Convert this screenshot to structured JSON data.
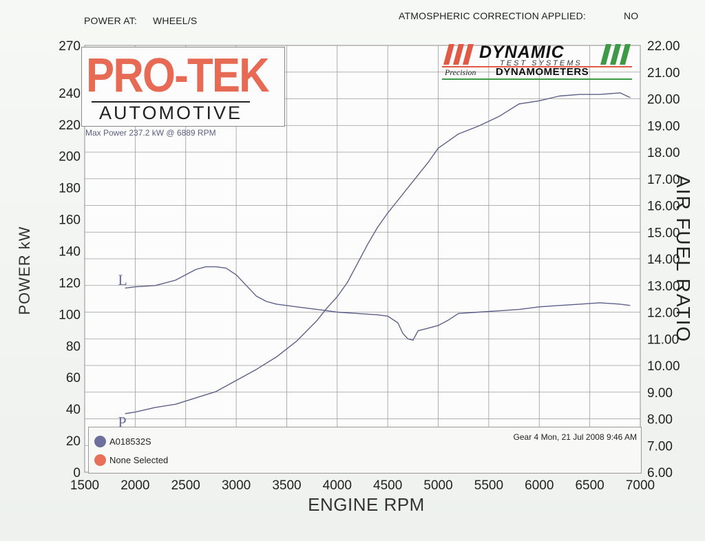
{
  "header": {
    "power_at_label": "POWER AT:",
    "power_at_value": "WHEEL/S",
    "atm_label": "ATMOSPHERIC CORRECTION APPLIED:",
    "atm_value": "NO"
  },
  "logos": {
    "protek_name": "PRO-TEK",
    "protek_sub": "AUTOMOTIVE",
    "dynamic_title": "DYNAMIC",
    "dynamic_sub": "TEST SYSTEMS",
    "dynamic_precision": "Precision",
    "dynamic_dyno": "DYNAMOMETERS"
  },
  "max_power": "Max Power 237.2 kW @ 6889 RPM",
  "legend": {
    "run1": "A018532S",
    "run2": "None Selected",
    "run1_color": "#6f6f9e",
    "run2_color": "#e8705a",
    "gear_info": "Gear 4 Mon, 21 Jul 2008 9:46 AM"
  },
  "chart_data": {
    "type": "line",
    "xlabel": "ENGINE RPM",
    "ylabel": "POWER kW",
    "y2label": "AIR FUEL RATIO",
    "xlim": [
      1500,
      7000
    ],
    "ylim": [
      0,
      270
    ],
    "y2lim": [
      6.0,
      22.0
    ],
    "x_ticks": [
      "1500",
      "2000",
      "2500",
      "3000",
      "3500",
      "4000",
      "4500",
      "5000",
      "5500",
      "6000",
      "6500",
      "7000"
    ],
    "y_ticks": [
      "0",
      "20",
      "40",
      "60",
      "80",
      "100",
      "120",
      "140",
      "160",
      "180",
      "200",
      "220",
      "240",
      "270"
    ],
    "y_tick_values": [
      0,
      20,
      40,
      60,
      80,
      100,
      120,
      140,
      160,
      180,
      200,
      220,
      240,
      270
    ],
    "y2_ticks": [
      "6.00",
      "7.00",
      "8.00",
      "9.00",
      "10.00",
      "11.00",
      "12.00",
      "13.00",
      "14.00",
      "15.00",
      "16.00",
      "17.00",
      "18.00",
      "19.00",
      "20.00",
      "21.00",
      "22.00"
    ],
    "grid": true,
    "line_color": "#5d6088",
    "annotations": [
      {
        "text": "L",
        "x": 1830,
        "y": 122
      },
      {
        "text": "P",
        "x": 1830,
        "y": 32
      }
    ],
    "series": [
      {
        "name": "A018532S",
        "axis": "left",
        "x": [
          1900,
          2000,
          2200,
          2400,
          2600,
          2800,
          3000,
          3200,
          3400,
          3600,
          3800,
          3900,
          4000,
          4100,
          4200,
          4300,
          4400,
          4500,
          4600,
          4700,
          4800,
          4900,
          5000,
          5200,
          5400,
          5600,
          5800,
          6000,
          6200,
          6400,
          6600,
          6800,
          6900
        ],
        "y": [
          37,
          38,
          41,
          43,
          47,
          51,
          58,
          65,
          73,
          83,
          96,
          104,
          111,
          120,
          132,
          144,
          155,
          164,
          172,
          180,
          188,
          196,
          205,
          214,
          219,
          225,
          233,
          235,
          238,
          239,
          239,
          240,
          237
        ]
      },
      {
        "name": "Air Fuel Ratio",
        "axis": "right",
        "x": [
          1900,
          2000,
          2200,
          2400,
          2600,
          2700,
          2800,
          2900,
          3000,
          3100,
          3200,
          3300,
          3400,
          3600,
          3800,
          4000,
          4200,
          4400,
          4500,
          4600,
          4650,
          4700,
          4750,
          4800,
          4900,
          5000,
          5100,
          5200,
          5400,
          5600,
          5800,
          6000,
          6200,
          6400,
          6600,
          6800,
          6900
        ],
        "y": [
          12.9,
          12.95,
          13.0,
          13.2,
          13.6,
          13.7,
          13.7,
          13.65,
          13.4,
          13.0,
          12.6,
          12.4,
          12.3,
          12.2,
          12.1,
          12.0,
          11.95,
          11.9,
          11.85,
          11.6,
          11.2,
          11.0,
          10.95,
          11.3,
          11.4,
          11.5,
          11.7,
          11.95,
          12.0,
          12.05,
          12.1,
          12.2,
          12.25,
          12.3,
          12.35,
          12.3,
          12.25
        ]
      }
    ]
  }
}
